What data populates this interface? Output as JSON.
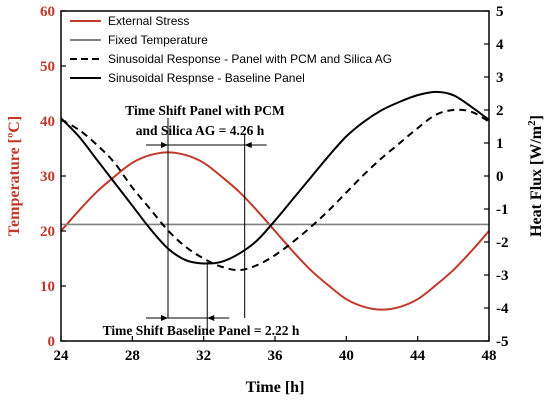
{
  "chart_data": {
    "type": "line",
    "xlabel": "Time [h]",
    "ylabel_left": "Temperature [ºC]",
    "ylabel_right_main": "Heat Flux [W/m",
    "ylabel_right_sup": "2",
    "ylabel_right_tail": "]",
    "xlim": [
      24,
      48
    ],
    "xticks": [
      24,
      28,
      32,
      36,
      40,
      44,
      48
    ],
    "ylim_left": [
      0,
      60
    ],
    "yticks_left": [
      0,
      10,
      20,
      30,
      40,
      50,
      60
    ],
    "ylim_right": [
      -5,
      5
    ],
    "yticks_right": [
      -5,
      -4,
      -3,
      -2,
      -1,
      0,
      1,
      2,
      3,
      4,
      5
    ],
    "left_color": "#c0392b",
    "series": [
      {
        "name": "External Stress",
        "axis": "left",
        "color": "#c0392b",
        "dash": "solid",
        "x": [
          24,
          25,
          26,
          27,
          28,
          29,
          30,
          31,
          32,
          33,
          34,
          35,
          36,
          37,
          38,
          39,
          40,
          41,
          42,
          43,
          44,
          45,
          46,
          47,
          48
        ],
        "y": [
          20,
          23.7,
          27.1,
          29.9,
          32.4,
          33.8,
          34.3,
          33.8,
          32.4,
          29.9,
          27.1,
          23.7,
          20,
          16.3,
          12.9,
          10.1,
          7.6,
          6.2,
          5.7,
          6.2,
          7.6,
          10.1,
          12.9,
          16.3,
          20
        ]
      },
      {
        "name": "Fixed Temperature",
        "axis": "left",
        "color": "#808080",
        "dash": "solid",
        "x": [
          24,
          48
        ],
        "y": [
          21.2,
          21.2
        ]
      },
      {
        "name": "Sinusoidal Response - Panel with PCM and Silica AG",
        "axis": "right",
        "color": "#000000",
        "dash": "dashed",
        "x": [
          24,
          25,
          26,
          27,
          28,
          29,
          30,
          31,
          32,
          33,
          34,
          35,
          36,
          37,
          38,
          39,
          40,
          41,
          42,
          43,
          44,
          45,
          46,
          47,
          48
        ],
        "y": [
          1.7,
          1.4,
          0.95,
          0.4,
          -0.35,
          -1.0,
          -1.65,
          -2.15,
          -2.5,
          -2.75,
          -2.85,
          -2.7,
          -2.4,
          -2.0,
          -1.55,
          -1.05,
          -0.5,
          0.05,
          0.55,
          1.0,
          1.45,
          1.85,
          2.0,
          1.95,
          1.65
        ]
      },
      {
        "name": "Sinusoidal Respnse - Baseline Panel",
        "axis": "right",
        "color": "#000000",
        "dash": "solid",
        "x": [
          24,
          25,
          26,
          27,
          28,
          29,
          30,
          31,
          32,
          33,
          34,
          35,
          36,
          37,
          38,
          39,
          40,
          41,
          42,
          43,
          44,
          45,
          46,
          47,
          48
        ],
        "y": [
          1.75,
          1.2,
          0.5,
          -0.2,
          -0.9,
          -1.6,
          -2.2,
          -2.55,
          -2.65,
          -2.6,
          -2.35,
          -1.95,
          -1.35,
          -0.7,
          -0.05,
          0.6,
          1.2,
          1.65,
          2.0,
          2.25,
          2.45,
          2.55,
          2.45,
          2.1,
          1.7
        ]
      }
    ],
    "annotations": [
      {
        "id": "pcm",
        "line1": "Time Shift Panel with PCM",
        "line2": "and Silica AG  = 4.26 h",
        "from_x": 30,
        "to_x": 34.3
      },
      {
        "id": "baseline",
        "line1": "Time Shift Baseline Panel = 2.22 h",
        "from_x": 30,
        "to_x": 32.2
      }
    ],
    "legend_position": "top-left"
  }
}
